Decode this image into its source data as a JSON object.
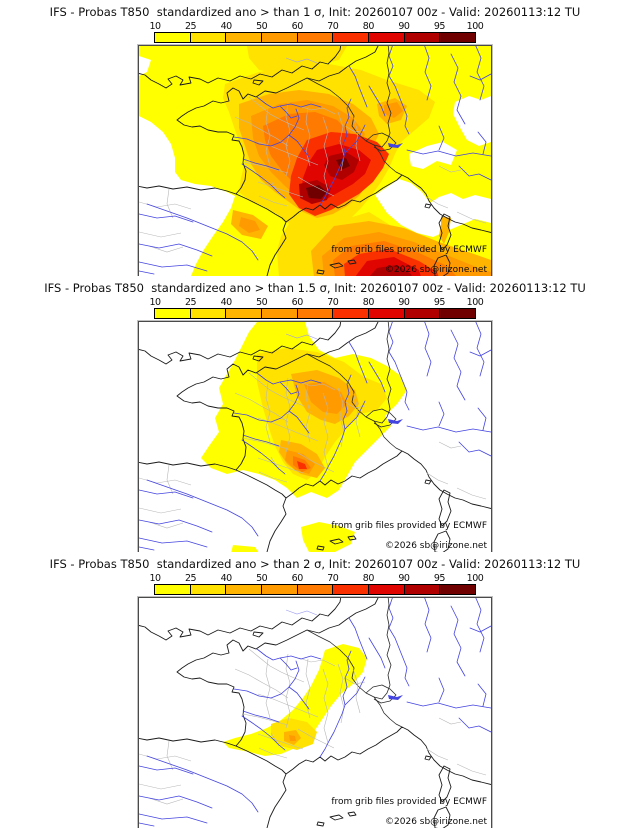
{
  "meta": {
    "model": "IFS",
    "field": "Probas T850",
    "init": "20260107 00z",
    "valid": "20260113:12 TU"
  },
  "colorbar": {
    "ticks": [
      "10",
      "25",
      "40",
      "50",
      "60",
      "70",
      "80",
      "90",
      "95",
      "100"
    ],
    "colors": [
      "#FFFF00",
      "#FFE200",
      "#FFB500",
      "#FF9A00",
      "#FF7A00",
      "#FA3000",
      "#E00500",
      "#B00000",
      "#700000"
    ]
  },
  "panels": [
    {
      "title": "IFS - Probas T850  standardized ano > than 1 σ, Init: 20260107 00z - Valid: 20260113:12 TU",
      "threshold_sigma": "1",
      "credit1": "from grib files provided by ECMWF",
      "credit2": "©2026 sb@irizone.net"
    },
    {
      "title": "IFS - Probas T850  standardized ano > than 1.5 σ, Init: 20260107 00z - Valid: 20260113:12 TU",
      "threshold_sigma": "1.5",
      "credit1": "from grib files provided by ECMWF",
      "credit2": "©2026 sb@irizone.net"
    },
    {
      "title": "IFS - Probas T850  standardized ano > than 2 σ, Init: 20260107 00z - Valid: 20260113:12 TU",
      "threshold_sigma": "2",
      "credit1": "from grib files provided by ECMWF",
      "credit2": "©2026 sb@irizone.net"
    }
  ]
}
